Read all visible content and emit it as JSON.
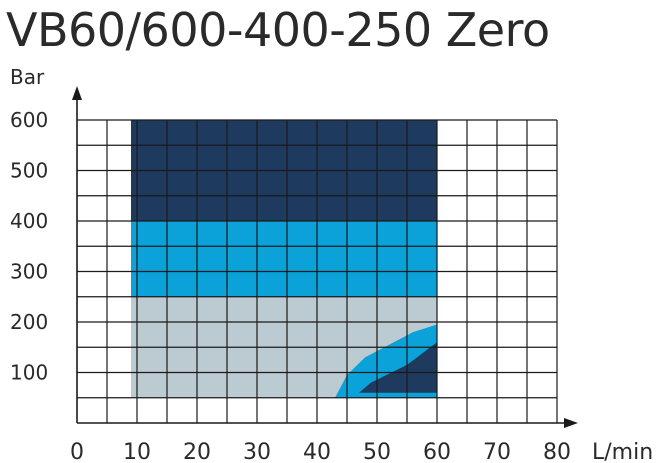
{
  "title": "VB60/600-400-250 Zero",
  "chart_data": {
    "type": "area",
    "title": "VB60/600-400-250 Zero",
    "ylabel": "Bar",
    "xlabel": "L/min",
    "xlim": [
      0,
      80
    ],
    "ylim": [
      0,
      600
    ],
    "x_ticks": [
      "0",
      "10",
      "20",
      "30",
      "40",
      "50",
      "60",
      "70",
      "80"
    ],
    "y_ticks": [
      "100",
      "200",
      "300",
      "400",
      "500",
      "600"
    ],
    "grid": true,
    "regions": [
      {
        "x": [
          9,
          60
        ],
        "y": [
          400,
          600
        ],
        "color": "#1f3a5f"
      },
      {
        "x": [
          9,
          60
        ],
        "y": [
          250,
          400
        ],
        "color": "#0aa2d8"
      },
      {
        "x": [
          9,
          60
        ],
        "y": [
          50,
          250
        ],
        "color": "#bccbd1"
      }
    ],
    "overlay_bands": [
      {
        "color": "#0aa2d8",
        "points": [
          [
            43,
            50
          ],
          [
            60,
            50
          ],
          [
            60,
            195
          ],
          [
            56,
            180
          ],
          [
            48,
            130
          ],
          [
            45,
            95
          ]
        ]
      },
      {
        "color": "#1f3a5f",
        "points": [
          [
            47,
            60
          ],
          [
            60,
            60
          ],
          [
            60,
            160
          ],
          [
            55,
            115
          ],
          [
            49,
            80
          ]
        ]
      }
    ]
  }
}
